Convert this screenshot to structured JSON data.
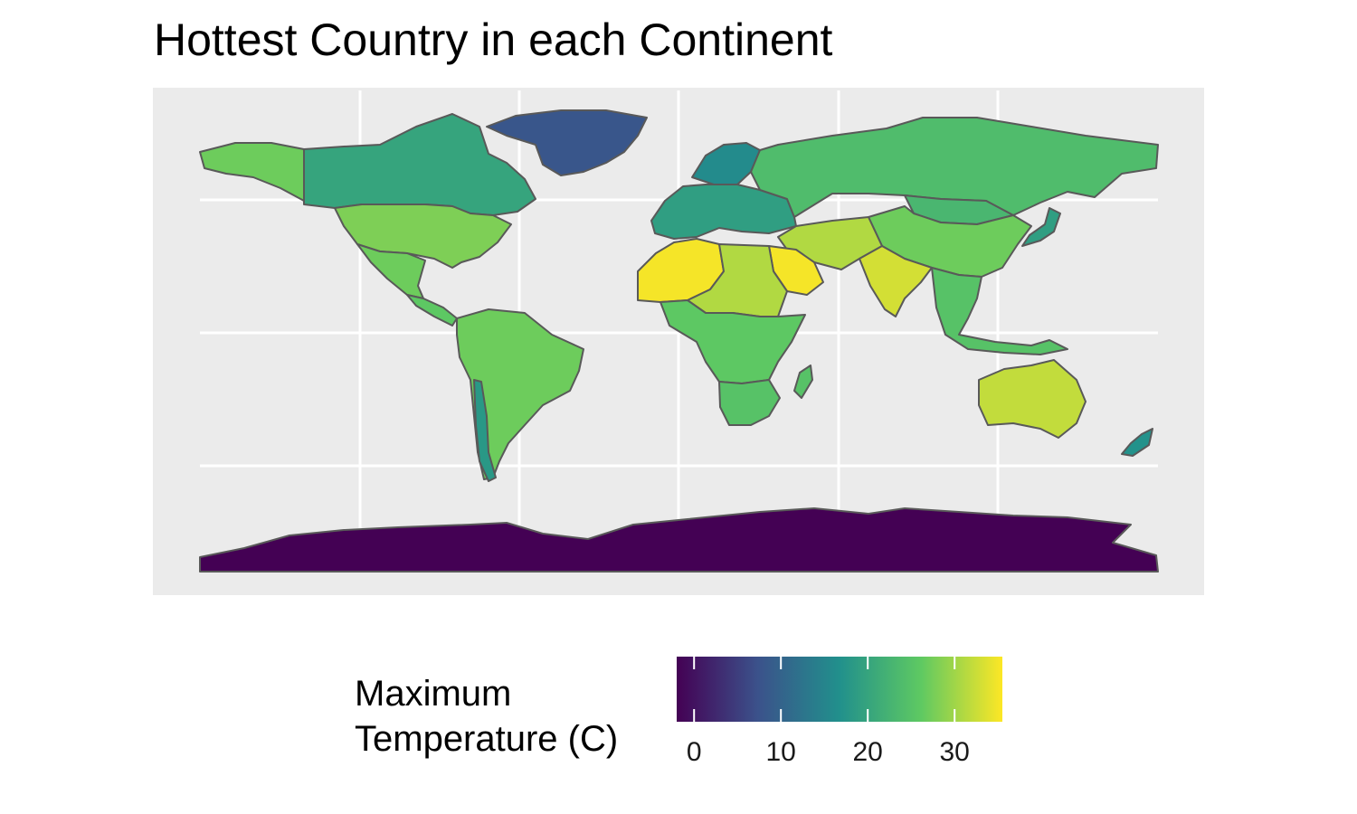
{
  "title": "Hottest Country in each Continent",
  "colors": {
    "panel_background": "#ebebeb",
    "grid": "#ffffff",
    "border": "#595959",
    "viridis": [
      "#440154",
      "#3b528b",
      "#21908c",
      "#5ec962",
      "#fde725"
    ]
  },
  "legend": {
    "title_lines": [
      "Maximum",
      "Temperature (C)"
    ],
    "range": [
      -2,
      35.5
    ],
    "ticks": [
      0,
      10,
      20,
      30
    ],
    "tick_labels": [
      "0",
      "10",
      "20",
      "30"
    ]
  },
  "regions": [
    {
      "name": "Antarctica",
      "value": -2
    },
    {
      "name": "Greenland",
      "value": 8
    },
    {
      "name": "Canada",
      "value": 20
    },
    {
      "name": "Alaska",
      "value": 27
    },
    {
      "name": "United States",
      "value": 28
    },
    {
      "name": "Mexico",
      "value": 27
    },
    {
      "name": "Central America",
      "value": 26
    },
    {
      "name": "South America",
      "value": 27
    },
    {
      "name": "Chile",
      "value": 18
    },
    {
      "name": "Scandinavia",
      "value": 16
    },
    {
      "name": "Europe",
      "value": 19
    },
    {
      "name": "Russia",
      "value": 24
    },
    {
      "name": "Mongolia",
      "value": 23
    },
    {
      "name": "China",
      "value": 27
    },
    {
      "name": "Middle East",
      "value": 31
    },
    {
      "name": "Saudi Arabia",
      "value": 35
    },
    {
      "name": "India",
      "value": 33
    },
    {
      "name": "Southeast Asia",
      "value": 25
    },
    {
      "name": "Japan",
      "value": 19
    },
    {
      "name": "North Africa",
      "value": 35
    },
    {
      "name": "Sahel",
      "value": 31
    },
    {
      "name": "Central Africa",
      "value": 26
    },
    {
      "name": "Southern Africa",
      "value": 25
    },
    {
      "name": "Madagascar",
      "value": 25
    },
    {
      "name": "Australia",
      "value": 32
    },
    {
      "name": "New Zealand",
      "value": 17
    }
  ]
}
